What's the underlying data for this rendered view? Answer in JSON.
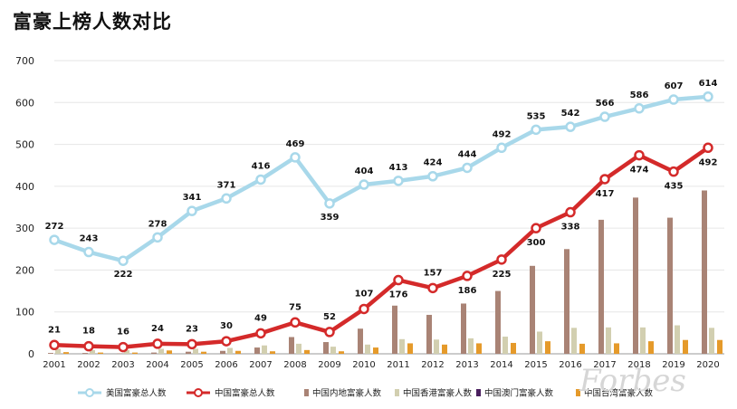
{
  "chart_data": {
    "type": "bar",
    "title": "富豪上榜人数对比",
    "categories": [
      "2001",
      "2002",
      "2003",
      "2004",
      "2005",
      "2006",
      "2007",
      "2008",
      "2009",
      "2010",
      "2011",
      "2012",
      "2013",
      "2014",
      "2015",
      "2016",
      "2017",
      "2018",
      "2019",
      "2020"
    ],
    "ylim": [
      0,
      700
    ],
    "yticks": [
      0,
      100,
      200,
      300,
      400,
      500,
      600,
      700
    ],
    "grid": true,
    "legend_position": "bottom",
    "series": [
      {
        "name": "美国富豪总人数",
        "kind": "line",
        "color": "#a8d8ea",
        "values": [
          272,
          243,
          222,
          278,
          341,
          371,
          416,
          469,
          359,
          404,
          413,
          424,
          444,
          492,
          535,
          542,
          566,
          586,
          607,
          614
        ]
      },
      {
        "name": "中国富豪总人数",
        "kind": "line",
        "color": "#d42a2a",
        "values": [
          21,
          18,
          16,
          24,
          23,
          30,
          49,
          75,
          52,
          107,
          176,
          157,
          186,
          225,
          300,
          338,
          417,
          474,
          435,
          492
        ]
      },
      {
        "name": "中国内地富豪人数",
        "kind": "bar",
        "color": "#a98375",
        "values": [
          2,
          2,
          1,
          3,
          5,
          7,
          15,
          40,
          28,
          60,
          115,
          93,
          120,
          150,
          210,
          250,
          320,
          373,
          325,
          390
        ]
      },
      {
        "name": "中国香港富豪人数",
        "kind": "bar",
        "color": "#d2cfb0",
        "values": [
          12,
          9,
          9,
          12,
          12,
          14,
          20,
          24,
          17,
          22,
          35,
          34,
          37,
          41,
          53,
          62,
          63,
          63,
          68,
          62
        ]
      },
      {
        "name": "中国澳门富豪人数",
        "kind": "bar",
        "color": "#4a1f5e",
        "values": [
          0,
          0,
          0,
          0,
          0,
          0,
          0,
          0,
          0,
          0,
          0,
          0,
          0,
          0,
          0,
          0,
          0,
          0,
          0,
          0
        ]
      },
      {
        "name": "中国台湾富豪人数",
        "kind": "bar",
        "color": "#e59a2a",
        "values": [
          4,
          3,
          3,
          8,
          5,
          7,
          6,
          9,
          6,
          15,
          25,
          22,
          25,
          26,
          30,
          24,
          25,
          30,
          33,
          33
        ]
      }
    ]
  },
  "watermark": "Forbes"
}
